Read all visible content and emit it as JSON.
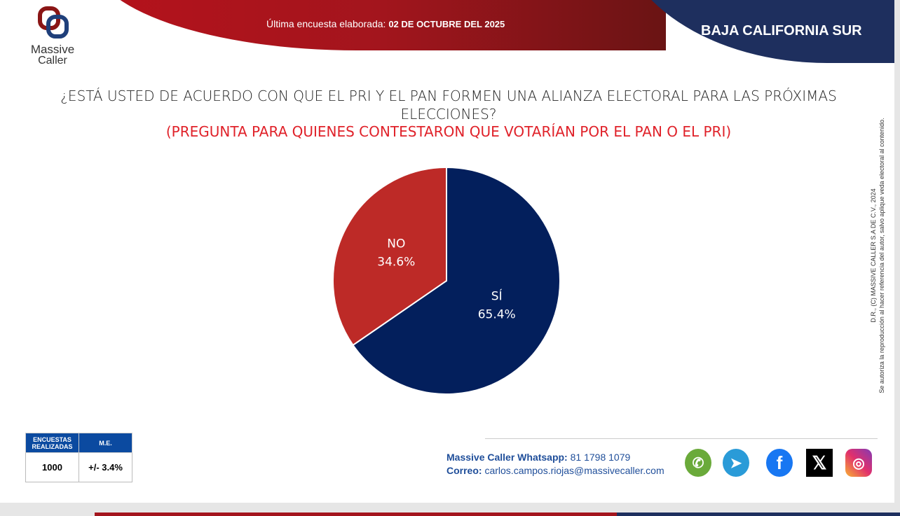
{
  "header": {
    "updated_label": "Última encuesta elaborada:",
    "updated_date": "02 DE OCTUBRE DEL 2025",
    "state": "BAJA CALIFORNIA SUR",
    "logo": "Massive Caller"
  },
  "logo": {
    "line1": "Massive",
    "line2": "Caller"
  },
  "question": "¿ESTÁ USTED DE ACUERDO CON QUE EL PRI Y EL PAN FORMEN UNA ALIANZA ELECTORAL PARA LAS PRÓXIMAS ELECCIONES?",
  "subtitle": "(PREGUNTA PARA QUIENES CONTESTARON QUE VOTARÍAN POR EL PAN O EL PRI)",
  "chart_data": {
    "type": "pie",
    "title": "¿ESTÁ USTED DE ACUERDO CON QUE EL PRI Y EL PAN FORMEN UNA ALIANZA ELECTORAL PARA LAS PRÓXIMAS ELECCIONES?",
    "categories": [
      "SÍ",
      "NO"
    ],
    "values": [
      65.4,
      34.6
    ],
    "labels": [
      "65.4%",
      "34.6%"
    ],
    "colors": [
      "#031f5c",
      "#bd2a27"
    ]
  },
  "copyright": {
    "line1": "D.R., (C) MASSIVE CALLER S.A DE C.V., 2024",
    "line2": "Se autoriza la reproducción al hacer referencia del autor, salvo aplique veda electoral al contenido."
  },
  "stats": {
    "h1": "ENCUESTAS REALIZADAS",
    "h2": "M.E.",
    "v1": "1000",
    "v2": "+/- 3.4%"
  },
  "contact": {
    "wa_label": "Massive Caller Whatsapp:",
    "wa_value": "81 1798 1079",
    "mail_label": "Correo:",
    "mail_value": "carlos.campos.riojas@massivecaller.com"
  },
  "social": [
    "whatsapp-icon",
    "telegram-icon",
    "facebook-icon",
    "x-icon",
    "instagram-icon"
  ]
}
